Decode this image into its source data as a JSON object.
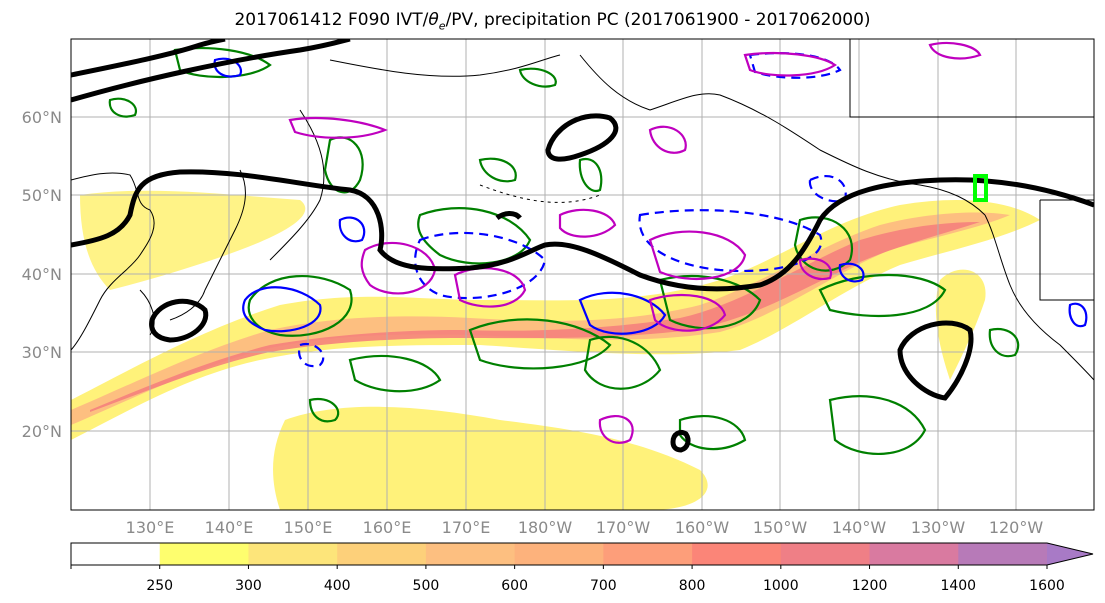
{
  "title": {
    "prefix": "2017061412 F090 IVT/",
    "theta_symbol": "θ",
    "theta_sub": "e",
    "suffix": "/PV, precipitation PC (2017061900 - 2017062000)"
  },
  "axes": {
    "lat_labels": [
      "60°N",
      "50°N",
      "40°N",
      "30°N",
      "20°N"
    ],
    "lon_labels": [
      "130°E",
      "140°E",
      "150°E",
      "160°E",
      "170°E",
      "180°W",
      "170°W",
      "160°W",
      "150°W",
      "140°W",
      "130°W",
      "120°W"
    ]
  },
  "colorbar": {
    "levels": [
      "250",
      "300",
      "400",
      "500",
      "600",
      "700",
      "800",
      "1000",
      "1200",
      "1400",
      "1600"
    ],
    "colors": [
      "#ffffff",
      "#fefe6e",
      "#fde57a",
      "#fdd07a",
      "#fdbf80",
      "#fdb27c",
      "#fd9e7a",
      "#fb8578",
      "#ef7f86",
      "#d97aa0",
      "#b77ab8",
      "#a87ac6"
    ]
  },
  "colors": {
    "ivt_fill_low": "#fff27a",
    "ivt_fill_high": "#f47c7c",
    "coast": "#000000",
    "pv_contour": "#000000",
    "green_contour": "#008000",
    "blue_contour": "#0000ff",
    "magenta_contour": "#bf00bf",
    "marker": "#00ff00",
    "grid": "#b0b0b0"
  }
}
